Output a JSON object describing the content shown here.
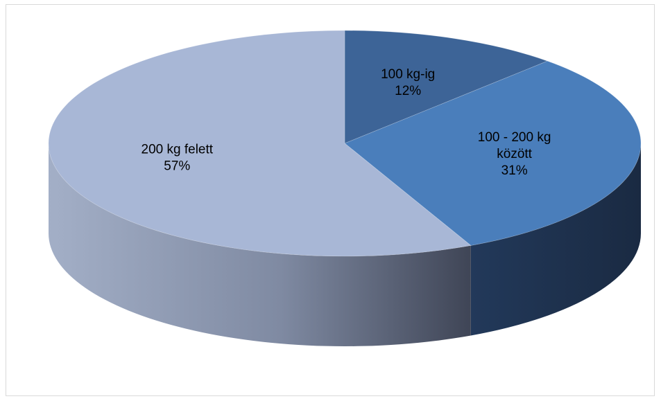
{
  "chart_data": {
    "type": "pie",
    "style": "3d",
    "title": "",
    "legend": "none",
    "slices": [
      {
        "label_lines": [
          "100 kg-ig"
        ],
        "percent_label": "12%",
        "value": 12,
        "color": "#3d6497",
        "side_color": "#1e3555"
      },
      {
        "label_lines": [
          "100 - 200 kg",
          "között"
        ],
        "percent_label": "31%",
        "value": 31,
        "color": "#4a7ebb",
        "side_color": "#1f324d"
      },
      {
        "label_lines": [
          "200 kg felett"
        ],
        "percent_label": "57%",
        "value": 57,
        "color": "#a8b7d6",
        "side_color": "#7f8aa2"
      }
    ]
  }
}
